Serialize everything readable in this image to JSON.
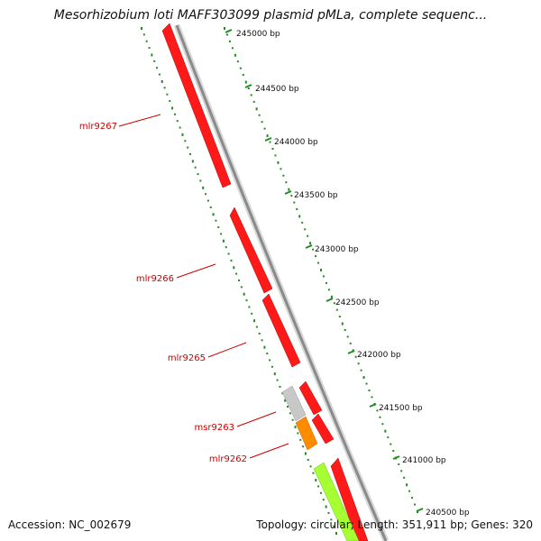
{
  "title": "Mesorhizobium loti MAFF303099 plasmid pMLa, complete sequenc...",
  "footer": {
    "accession": "Accession: NC_002679",
    "summary": "Topology: circular; Length: 351,911 bp; Genes: 320"
  },
  "colors": {
    "gene_red": "#ff1a1a",
    "gene_gray": "#c8c8c8",
    "gene_orange": "#ff8c00",
    "gene_lime": "#a6ff33",
    "backbone": "#8a8a8a",
    "tick_green": "#228b22",
    "label_red": "#cc0000"
  },
  "scale": {
    "ticks": [
      "245000 bp",
      "244500 bp",
      "244000 bp",
      "243500 bp",
      "243000 bp",
      "242500 bp",
      "242000 bp",
      "241500 bp",
      "241000 bp",
      "240500 bp"
    ]
  },
  "genes": [
    {
      "label": "mlr9267"
    },
    {
      "label": "mlr9266"
    },
    {
      "label": "mlr9265"
    },
    {
      "label": "msr9263"
    },
    {
      "label": "mlr9262"
    }
  ]
}
